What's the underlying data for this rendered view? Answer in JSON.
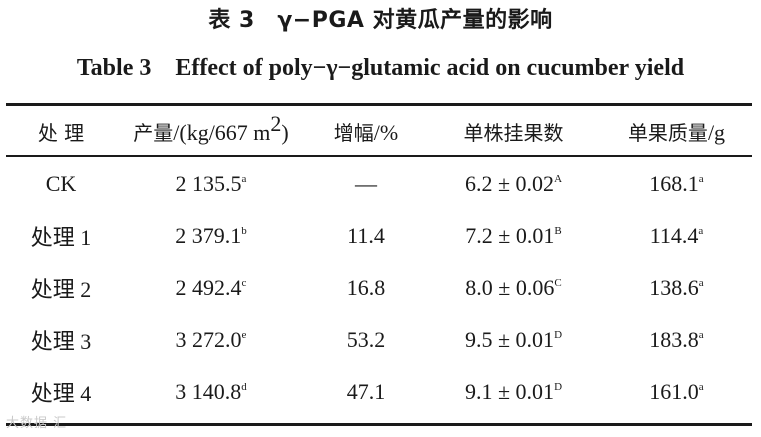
{
  "title_cn": "表 3　γ−PGA 对黄瓜产量的影响",
  "title_en": "Table 3　Effect of poly−γ−glutamic acid on cucumber yield",
  "headers": {
    "treatment": "处 理",
    "yield_cn": "产量",
    "yield_unit": "/(kg/667 m",
    "yield_exp": "2",
    "yield_close": ")",
    "increase_cn": "增幅",
    "increase_unit": "/%",
    "fruits_cn": "单株挂果数",
    "weight_cn": "单果质量",
    "weight_unit": "/g"
  },
  "rows": [
    {
      "label": "CK",
      "yield": "2 135.5",
      "yield_sig": "a",
      "increase": "—",
      "fruits": "6.2 ± 0.02",
      "fruits_sig": "A",
      "weight": "168.1",
      "weight_sig": "a"
    },
    {
      "label": "处理 1",
      "yield": "2 379.1",
      "yield_sig": "b",
      "increase": "11.4",
      "fruits": "7.2 ± 0.01",
      "fruits_sig": "B",
      "weight": "114.4",
      "weight_sig": "a"
    },
    {
      "label": "处理 2",
      "yield": "2 492.4",
      "yield_sig": "c",
      "increase": "16.8",
      "fruits": "8.0 ± 0.06",
      "fruits_sig": "C",
      "weight": "138.6",
      "weight_sig": "a"
    },
    {
      "label": "处理 3",
      "yield": "3 272.0",
      "yield_sig": "e",
      "increase": "53.2",
      "fruits": "9.5 ± 0.01",
      "fruits_sig": "D",
      "weight": "183.8",
      "weight_sig": "a"
    },
    {
      "label": "处理 4",
      "yield": "3 140.8",
      "yield_sig": "d",
      "increase": "47.1",
      "fruits": "9.1 ± 0.01",
      "fruits_sig": "D",
      "weight": "161.0",
      "weight_sig": "a"
    }
  ],
  "watermark": "大数据 汇"
}
